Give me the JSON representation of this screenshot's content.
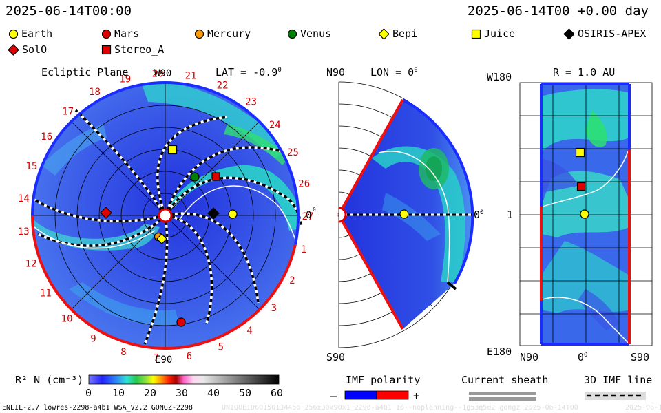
{
  "header": {
    "datetime": "2025-06-14T00:00",
    "model_time": "2025-06-14T00 +0.00 day"
  },
  "bodies": [
    {
      "name": "Earth",
      "symbol": "circle",
      "color": "#ffff00"
    },
    {
      "name": "Mars",
      "symbol": "circle",
      "color": "#e00000"
    },
    {
      "name": "Mercury",
      "symbol": "circle",
      "color": "#ff9900"
    },
    {
      "name": "Venus",
      "symbol": "circle",
      "color": "#008000"
    },
    {
      "name": "Bepi",
      "symbol": "diamond",
      "color": "#ffff00"
    },
    {
      "name": "Juice",
      "symbol": "square",
      "color": "#ffff00"
    },
    {
      "name": "OSIRIS-APEX",
      "symbol": "diamond",
      "color": "#000000"
    },
    {
      "name": "SolO",
      "symbol": "diamond",
      "color": "#e00000"
    },
    {
      "name": "Stereo_A",
      "symbol": "square",
      "color": "#e00000"
    }
  ],
  "panel_ecliptic": {
    "title": "Ecliptic Plane",
    "top_label": "W90",
    "bottom_label": "E90",
    "right_label": "0",
    "lat_label": "LAT = -0.9",
    "carrington_numbers": [
      "20",
      "21",
      "22",
      "23",
      "24",
      "25",
      "26",
      "27",
      "1",
      "2",
      "3",
      "4",
      "5",
      "6",
      "7",
      "8",
      "9",
      "10",
      "11",
      "12",
      "13",
      "14",
      "15",
      "16",
      "17",
      "18",
      "19"
    ]
  },
  "panel_meridional": {
    "top_label": "N90",
    "bottom_label": "S90",
    "lon_label": "LON = 0",
    "right_label": "0"
  },
  "panel_sphere": {
    "title": "R = 1.0 AU",
    "top_left": "W180",
    "bottom_left": "E180",
    "middle_left": "1",
    "x_labels": [
      "N90",
      "0",
      "S90"
    ]
  },
  "colorbar": {
    "label": "R² N (cm⁻³)",
    "ticks": [
      "0",
      "10",
      "20",
      "30",
      "40",
      "50",
      "60"
    ]
  },
  "imf_polarity": {
    "title": "IMF polarity",
    "minus": "–",
    "plus": "+",
    "neg_color": "#0000ff",
    "pos_color": "#ff0000"
  },
  "current_sheath": {
    "title": "Current sheath"
  },
  "imf_line": {
    "title": "3D IMF line"
  },
  "footer": {
    "model_info": "ENLIL-2.7 lowres-2298-a4b1 WSA_V2.2 GONGZ-2298",
    "watermark": "UNIQUEID60150134456 256x30x90x1 2298-a4b1 16--noplanning--1g53q5d2 gongz 2025-06-14T00",
    "corner": "2025-06-16"
  }
}
